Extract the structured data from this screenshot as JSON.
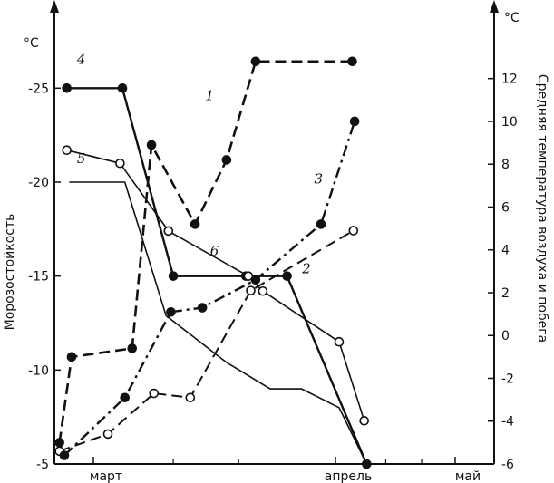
{
  "chart_data": {
    "type": "line",
    "xlabel": "",
    "ylabel": "Морозостойкость",
    "ylabel_right": "Средняя температура воздуха и побега",
    "left_unit": "°C",
    "right_unit": "°C",
    "x_ticks": [
      {
        "x": 0,
        "label": "март"
      },
      {
        "x": 1,
        "label": "апрель"
      },
      {
        "x": 2,
        "label": "май"
      }
    ],
    "left_axis": {
      "ylim": [
        -5,
        -29.5
      ],
      "ticks": [
        -5,
        -10,
        -15,
        -20,
        -25
      ]
    },
    "right_axis": {
      "ylim": [
        -6,
        15.5
      ],
      "ticks": [
        -6,
        -4,
        -2,
        0,
        2,
        4,
        6,
        8,
        10,
        12
      ]
    },
    "series": [
      {
        "name": "1",
        "axis": "right",
        "style": "dashed",
        "marker": "filled",
        "x": [
          -0.14,
          -0.09,
          0.16,
          0.24,
          0.42,
          0.55,
          0.67,
          0.78,
          1.14
        ],
        "y": [
          -5.0,
          -1.0,
          -0.6,
          8.9,
          5.2,
          8.2,
          12.8,
          12.8,
          12.8
        ],
        "markers": [
          true,
          true,
          true,
          true,
          true,
          true,
          true,
          false,
          true
        ]
      },
      {
        "name": "2",
        "axis": "right",
        "style": "dashed",
        "marker": "open",
        "x": [
          -0.14,
          0.06,
          0.25,
          0.4,
          0.65,
          1.15
        ],
        "y": [
          -5.4,
          -4.6,
          -2.7,
          -2.9,
          2.1,
          4.9
        ]
      },
      {
        "name": "3",
        "axis": "right",
        "style": "dashdot",
        "marker": "filled",
        "x": [
          -0.12,
          0.13,
          0.32,
          0.45,
          0.67,
          0.94,
          1.16
        ],
        "y": [
          -5.6,
          -2.9,
          1.1,
          1.3,
          2.6,
          5.2,
          10.0
        ]
      },
      {
        "name": "4",
        "axis": "left",
        "style": "solid",
        "marker": "filled",
        "x": [
          -0.11,
          0.12,
          0.33,
          0.63,
          0.8,
          1.26
        ],
        "y": [
          -25.0,
          -25.0,
          -15.0,
          -15.0,
          -15.0,
          -5.0
        ]
      },
      {
        "name": "5",
        "axis": "left",
        "style": "solid",
        "marker": "none",
        "x": [
          -0.1,
          0.13,
          0.3,
          0.55,
          0.73,
          0.86,
          1.03,
          1.26
        ],
        "y": [
          -20.0,
          -20.0,
          -12.9,
          -10.4,
          -9.0,
          -9.0,
          -8.0,
          -5.0
        ]
      },
      {
        "name": "6",
        "axis": "left",
        "style": "solid",
        "marker": "open",
        "x": [
          -0.11,
          0.11,
          0.31,
          0.64,
          0.7,
          1.03,
          1.24
        ],
        "y": [
          -21.7,
          -21.0,
          -17.4,
          -15.0,
          -14.2,
          -11.5,
          -7.3
        ]
      }
    ],
    "series_labels": [
      "1",
      "2",
      "3",
      "4",
      "5",
      "6"
    ]
  }
}
